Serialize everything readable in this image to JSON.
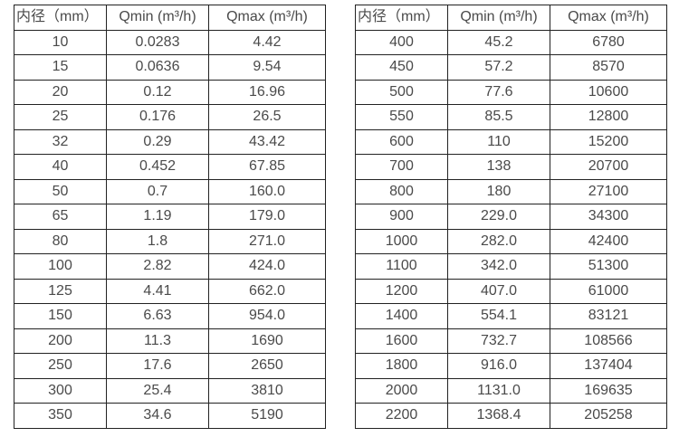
{
  "page": {
    "background": "#ffffff",
    "border_color": "#222222",
    "text_color": "#4a4a4a"
  },
  "tables": [
    {
      "name": "spec-table-small-diameters",
      "headers": [
        "内径（mm）",
        "Qmin (m³/h)",
        "Qmax (m³/h)"
      ],
      "rows": [
        [
          "10",
          "0.0283",
          "4.42"
        ],
        [
          "15",
          "0.0636",
          "9.54"
        ],
        [
          "20",
          "0.12",
          "16.96"
        ],
        [
          "25",
          "0.176",
          "26.5"
        ],
        [
          "32",
          "0.29",
          "43.42"
        ],
        [
          "40",
          "0.452",
          "67.85"
        ],
        [
          "50",
          "0.7",
          "160.0"
        ],
        [
          "65",
          "1.19",
          "179.0"
        ],
        [
          "80",
          "1.8",
          "271.0"
        ],
        [
          "100",
          "2.82",
          "424.0"
        ],
        [
          "125",
          "4.41",
          "662.0"
        ],
        [
          "150",
          "6.63",
          "954.0"
        ],
        [
          "200",
          "11.3",
          "1690"
        ],
        [
          "250",
          "17.6",
          "2650"
        ],
        [
          "300",
          "25.4",
          "3810"
        ],
        [
          "350",
          "34.6",
          "5190"
        ]
      ]
    },
    {
      "name": "spec-table-large-diameters",
      "headers": [
        "内径（mm）",
        "Qmin (m³/h)",
        "Qmax (m³/h)"
      ],
      "rows": [
        [
          "400",
          "45.2",
          "6780"
        ],
        [
          "450",
          "57.2",
          "8570"
        ],
        [
          "500",
          "77.6",
          "10600"
        ],
        [
          "550",
          "85.5",
          "12800"
        ],
        [
          "600",
          "110",
          "15200"
        ],
        [
          "700",
          "138",
          "20700"
        ],
        [
          "800",
          "180",
          "27100"
        ],
        [
          "900",
          "229.0",
          "34300"
        ],
        [
          "1000",
          "282.0",
          "42400"
        ],
        [
          "1100",
          "342.0",
          "51300"
        ],
        [
          "1200",
          "407.0",
          "61000"
        ],
        [
          "1400",
          "554.1",
          "83121"
        ],
        [
          "1600",
          "732.7",
          "108566"
        ],
        [
          "1800",
          "916.0",
          "137404"
        ],
        [
          "2000",
          "1131.0",
          "169635"
        ],
        [
          "2200",
          "1368.4",
          "205258"
        ]
      ]
    }
  ]
}
